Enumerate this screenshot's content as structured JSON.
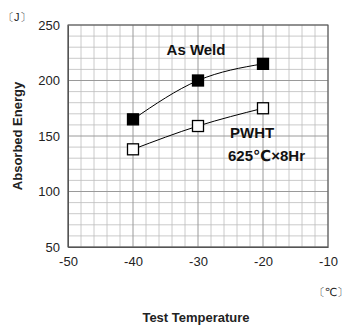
{
  "chart_data": {
    "type": "line",
    "xlabel": "Test Temperature",
    "ylabel": "Absorbed Energy",
    "x_unit": "〔℃〕",
    "y_unit": "〔J〕",
    "x": [
      -40,
      -30,
      -20
    ],
    "series": [
      {
        "name": "As Weld",
        "color": "#000000",
        "marker": "square",
        "line_style": "smooth",
        "values": [
          165,
          200,
          215
        ]
      },
      {
        "name": "PWHT 625℃×8Hr",
        "color": "#000000",
        "marker": "open-square",
        "line_style": "smooth",
        "values": [
          138,
          159,
          175
        ]
      }
    ],
    "xlim": [
      -50,
      -10
    ],
    "xticks": [
      -50,
      -40,
      -30,
      -20,
      -10
    ],
    "ylim": [
      50,
      250
    ],
    "yticks": [
      50,
      100,
      150,
      200,
      250
    ],
    "grid": true
  }
}
